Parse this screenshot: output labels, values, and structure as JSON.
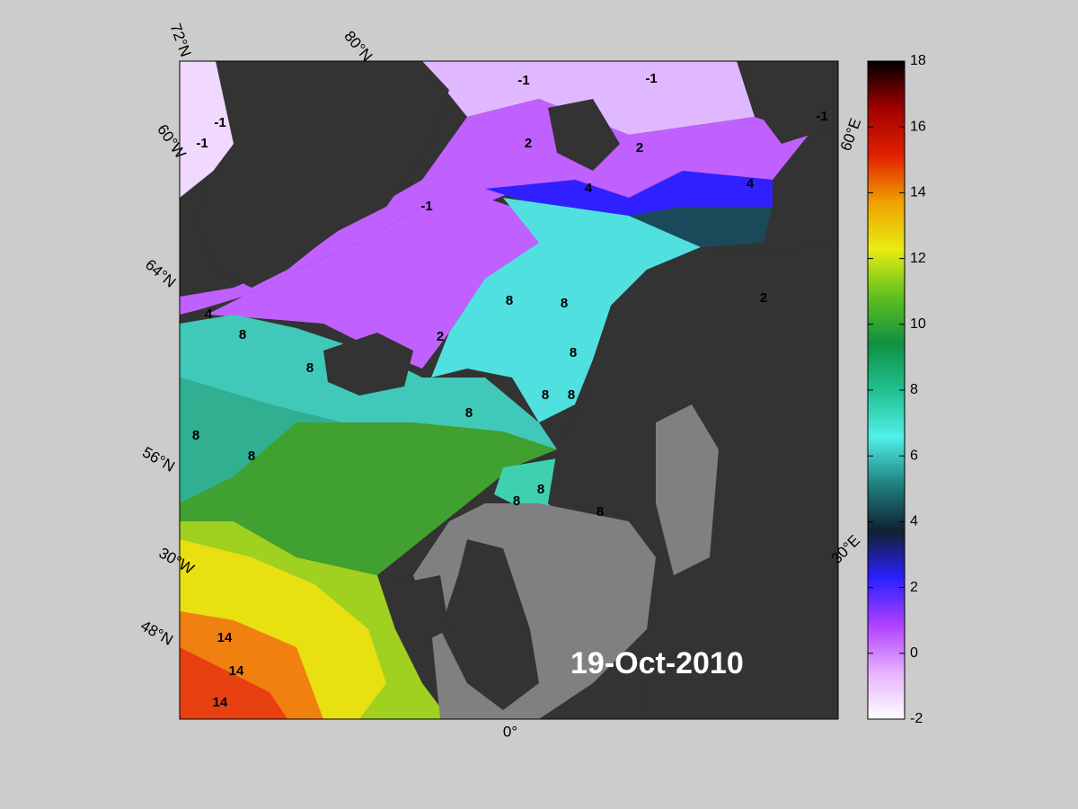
{
  "map": {
    "date": "19-Oct-2010",
    "graticule_labels": [
      "72°N",
      "80°N",
      "60°W",
      "64°N",
      "56°N",
      "30°W",
      "48°N",
      "0°",
      "30°E",
      "60°E"
    ],
    "contour_labels": [
      -1,
      -1,
      -1,
      -1,
      -1,
      -1,
      2,
      2,
      2,
      2,
      4,
      4,
      4,
      8,
      8,
      8,
      8,
      8,
      8,
      8,
      8,
      8,
      8,
      8,
      8,
      8,
      14,
      14,
      14
    ]
  },
  "colorbar": {
    "lim": [
      -2,
      18
    ],
    "ticks": [
      -2,
      0,
      2,
      4,
      6,
      8,
      10,
      12,
      14,
      16,
      18
    ],
    "colors": [
      "#ffffff",
      "#e6b0ff",
      "#b040ff",
      "#2a20ff",
      "#102030",
      "#208080",
      "#50f0e8",
      "#20c090",
      "#109040",
      "#60c020",
      "#e8ec10",
      "#f0a000",
      "#e02000",
      "#a00000",
      "#000000"
    ]
  }
}
